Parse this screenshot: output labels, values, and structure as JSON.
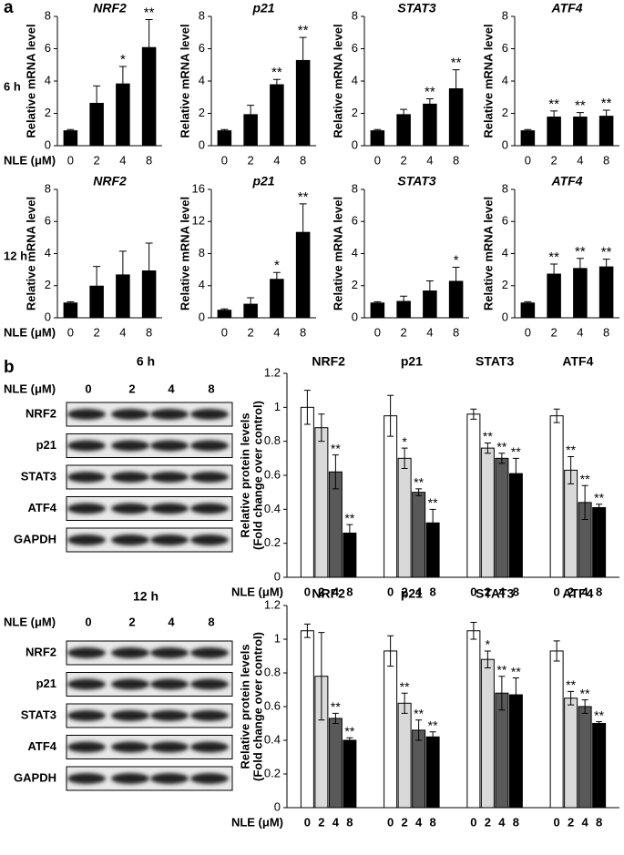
{
  "panel_labels": [
    "a",
    "b"
  ],
  "row_labels": [
    "6 h",
    "12 h"
  ],
  "chart_data": [
    {
      "type": "bar",
      "title": "NRF2",
      "y_label": "Relative mRNA level",
      "x_label": "NLE (μM)",
      "categories": [
        "0",
        "2",
        "4",
        "8"
      ],
      "values": [
        0.95,
        2.65,
        3.85,
        6.1
      ],
      "errors": [
        0.05,
        1.05,
        1.05,
        1.7
      ],
      "annotations": [
        null,
        null,
        "*",
        "**"
      ],
      "color": "#000000",
      "ylim": [
        0,
        8
      ],
      "yticks": [
        0,
        2,
        4,
        6,
        8
      ]
    },
    {
      "type": "bar",
      "title": "p21",
      "y_label": "Relative mRNA level",
      "categories": [
        "0",
        "2",
        "4",
        "8"
      ],
      "values": [
        0.95,
        1.95,
        3.8,
        5.3
      ],
      "errors": [
        0.05,
        0.55,
        0.3,
        1.4
      ],
      "annotations": [
        null,
        null,
        "**",
        "**"
      ],
      "color": "#000000",
      "ylim": [
        0,
        8
      ],
      "yticks": [
        0,
        2,
        4,
        6,
        8
      ]
    },
    {
      "type": "bar",
      "title": "STAT3",
      "y_label": "Relative mRNA level",
      "categories": [
        "0",
        "2",
        "4",
        "8"
      ],
      "values": [
        0.95,
        1.95,
        2.6,
        3.55
      ],
      "errors": [
        0.05,
        0.3,
        0.3,
        1.15
      ],
      "annotations": [
        null,
        null,
        "**",
        "**"
      ],
      "color": "#000000",
      "ylim": [
        0,
        8
      ],
      "yticks": [
        0,
        2,
        4,
        6,
        8
      ]
    },
    {
      "type": "bar",
      "title": "ATF4",
      "y_label": "Relative mRNA level",
      "categories": [
        "0",
        "2",
        "4",
        "8"
      ],
      "values": [
        0.95,
        1.8,
        1.8,
        1.85
      ],
      "errors": [
        0.05,
        0.35,
        0.25,
        0.35
      ],
      "annotations": [
        null,
        "**",
        "**",
        "**"
      ],
      "color": "#000000",
      "ylim": [
        0,
        8
      ],
      "yticks": [
        0,
        2,
        4,
        6,
        8
      ]
    },
    {
      "type": "bar",
      "title": "NRF2",
      "y_label": "Relative mRNA level",
      "x_label": "NLE (μM)",
      "categories": [
        "0",
        "2",
        "4",
        "8"
      ],
      "values": [
        0.95,
        2.0,
        2.7,
        2.95
      ],
      "errors": [
        0.05,
        1.2,
        1.45,
        1.7
      ],
      "annotations": [
        null,
        null,
        null,
        null
      ],
      "color": "#000000",
      "ylim": [
        0,
        8
      ],
      "yticks": [
        0,
        2,
        4,
        6,
        8
      ]
    },
    {
      "type": "bar",
      "title": "p21",
      "y_label": "Relative mRNA level",
      "categories": [
        "0",
        "2",
        "4",
        "8"
      ],
      "values": [
        1.0,
        1.75,
        4.85,
        10.7
      ],
      "errors": [
        0.1,
        0.75,
        0.8,
        3.5
      ],
      "annotations": [
        null,
        null,
        "*",
        "**"
      ],
      "color": "#000000",
      "ylim": [
        0,
        16
      ],
      "yticks": [
        0,
        4,
        8,
        12,
        16
      ]
    },
    {
      "type": "bar",
      "title": "STAT3",
      "y_label": "Relative mRNA level",
      "categories": [
        "0",
        "2",
        "4",
        "8"
      ],
      "values": [
        0.95,
        1.05,
        1.7,
        2.3
      ],
      "errors": [
        0.05,
        0.3,
        0.6,
        0.85
      ],
      "annotations": [
        null,
        null,
        null,
        "*"
      ],
      "color": "#000000",
      "ylim": [
        0,
        8
      ],
      "yticks": [
        0,
        2,
        4,
        6,
        8
      ]
    },
    {
      "type": "bar",
      "title": "ATF4",
      "y_label": "Relative mRNA level",
      "categories": [
        "0",
        "2",
        "4",
        "8"
      ],
      "values": [
        0.95,
        2.75,
        3.1,
        3.2
      ],
      "errors": [
        0.05,
        0.6,
        0.6,
        0.45
      ],
      "annotations": [
        null,
        "**",
        "**",
        "**"
      ],
      "color": "#000000",
      "ylim": [
        0,
        8
      ],
      "yticks": [
        0,
        2,
        4,
        6,
        8
      ]
    },
    {
      "type": "grouped_bar",
      "y_label": [
        "Relative protein levels",
        "(Fold change over control)"
      ],
      "x_label": "NLE (μM)",
      "categories": [
        "NRF2",
        "p21",
        "STAT3",
        "ATF4"
      ],
      "series": [
        {
          "name": "0",
          "color": "#ffffff",
          "values": [
            1.0,
            0.95,
            0.96,
            0.95
          ],
          "errors": [
            0.1,
            0.12,
            0.03,
            0.04
          ],
          "annotations": [
            null,
            null,
            null,
            null
          ]
        },
        {
          "name": "2",
          "color": "#d9d9d9",
          "values": [
            0.88,
            0.7,
            0.76,
            0.63
          ],
          "errors": [
            0.08,
            0.06,
            0.03,
            0.08
          ],
          "annotations": [
            null,
            "*",
            "**",
            "**"
          ]
        },
        {
          "name": "4",
          "color": "#595959",
          "values": [
            0.62,
            0.5,
            0.7,
            0.44
          ],
          "errors": [
            0.1,
            0.02,
            0.03,
            0.1
          ],
          "annotations": [
            "**",
            "**",
            "**",
            "**"
          ]
        },
        {
          "name": "8",
          "color": "#000000",
          "values": [
            0.26,
            0.32,
            0.61,
            0.41
          ],
          "errors": [
            0.05,
            0.08,
            0.09,
            0.02
          ],
          "annotations": [
            "**",
            "**",
            "**",
            "**"
          ]
        }
      ],
      "ylim": [
        0,
        1.2
      ],
      "yticks": [
        0,
        0.2,
        0.4,
        0.6,
        0.8,
        1,
        1.2
      ]
    },
    {
      "type": "grouped_bar",
      "y_label": [
        "Relative protein levels",
        "(Fold change over control)"
      ],
      "x_label": "NLE (μM)",
      "categories": [
        "NRF2",
        "p21",
        "STAT3",
        "ATF4"
      ],
      "series": [
        {
          "name": "0",
          "color": "#ffffff",
          "values": [
            1.05,
            0.93,
            1.05,
            0.93
          ],
          "errors": [
            0.04,
            0.09,
            0.05,
            0.06
          ],
          "annotations": [
            null,
            null,
            null,
            null
          ]
        },
        {
          "name": "2",
          "color": "#d9d9d9",
          "values": [
            0.78,
            0.62,
            0.88,
            0.65
          ],
          "errors": [
            0.26,
            0.06,
            0.05,
            0.04
          ],
          "annotations": [
            null,
            "**",
            "*",
            "**"
          ]
        },
        {
          "name": "4",
          "color": "#595959",
          "values": [
            0.53,
            0.46,
            0.68,
            0.6
          ],
          "errors": [
            0.03,
            0.06,
            0.1,
            0.04
          ],
          "annotations": [
            "**",
            "**",
            "**",
            "**"
          ]
        },
        {
          "name": "8",
          "color": "#000000",
          "values": [
            0.4,
            0.42,
            0.67,
            0.5
          ],
          "errors": [
            0.015,
            0.03,
            0.1,
            0.01
          ],
          "annotations": [
            "**",
            "**",
            "**",
            "**"
          ]
        }
      ],
      "ylim": [
        0,
        1.2
      ],
      "yticks": [
        0,
        0.2,
        0.4,
        0.6,
        0.8,
        1,
        1.2
      ]
    }
  ],
  "blots": [
    {
      "title": "6 h",
      "x_label": "NLE (μM)",
      "lanes": [
        "0",
        "2",
        "4",
        "8"
      ],
      "rows": [
        "NRF2",
        "p21",
        "STAT3",
        "ATF4",
        "GAPDH"
      ]
    },
    {
      "title": "12 h",
      "x_label": "NLE (μM)",
      "lanes": [
        "0",
        "2",
        "4",
        "8"
      ],
      "rows": [
        "NRF2",
        "p21",
        "STAT3",
        "ATF4",
        "GAPDH"
      ]
    }
  ]
}
